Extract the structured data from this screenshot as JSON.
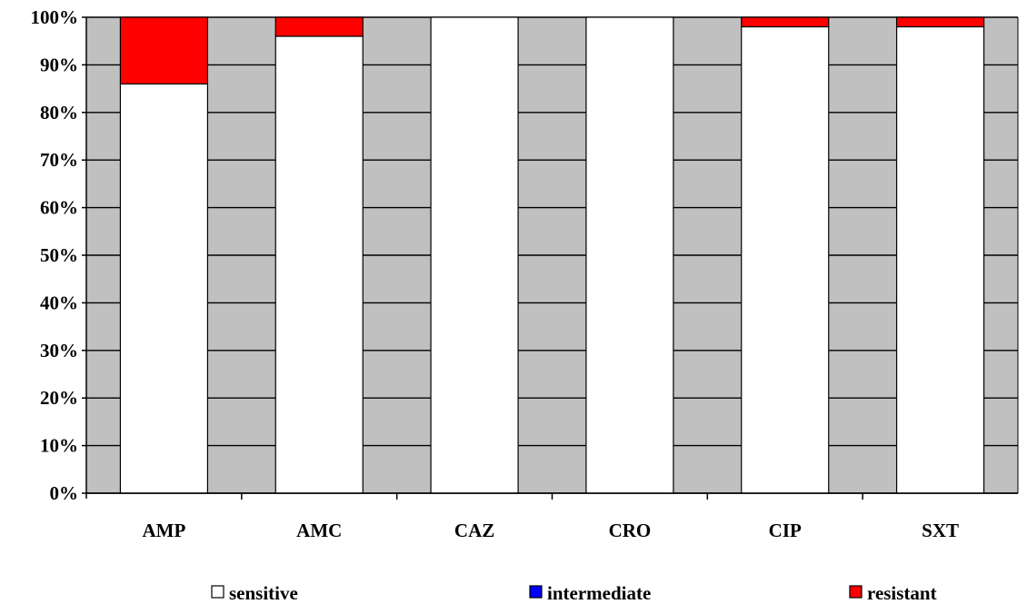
{
  "chart_data": {
    "type": "bar",
    "stacked": true,
    "percent_stacked": true,
    "categories": [
      "AMP",
      "AMC",
      "CAZ",
      "CRO",
      "CIP",
      "SXT"
    ],
    "series": [
      {
        "name": "sensitive",
        "color": "#ffffff",
        "values": [
          86,
          96,
          100,
          100,
          98,
          98
        ]
      },
      {
        "name": "intermediate",
        "color": "#0000ff",
        "values": [
          0,
          0,
          0,
          0,
          0,
          0
        ]
      },
      {
        "name": "resistant",
        "color": "#ff0000",
        "values": [
          14,
          4,
          0,
          0,
          2,
          2
        ]
      }
    ],
    "y_ticks": [
      "0%",
      "10%",
      "20%",
      "30%",
      "40%",
      "50%",
      "60%",
      "70%",
      "80%",
      "90%",
      "100%"
    ],
    "ylim": [
      0,
      100
    ],
    "grid": true,
    "plot_background": "#c0c0c0",
    "legend_position": "bottom"
  }
}
